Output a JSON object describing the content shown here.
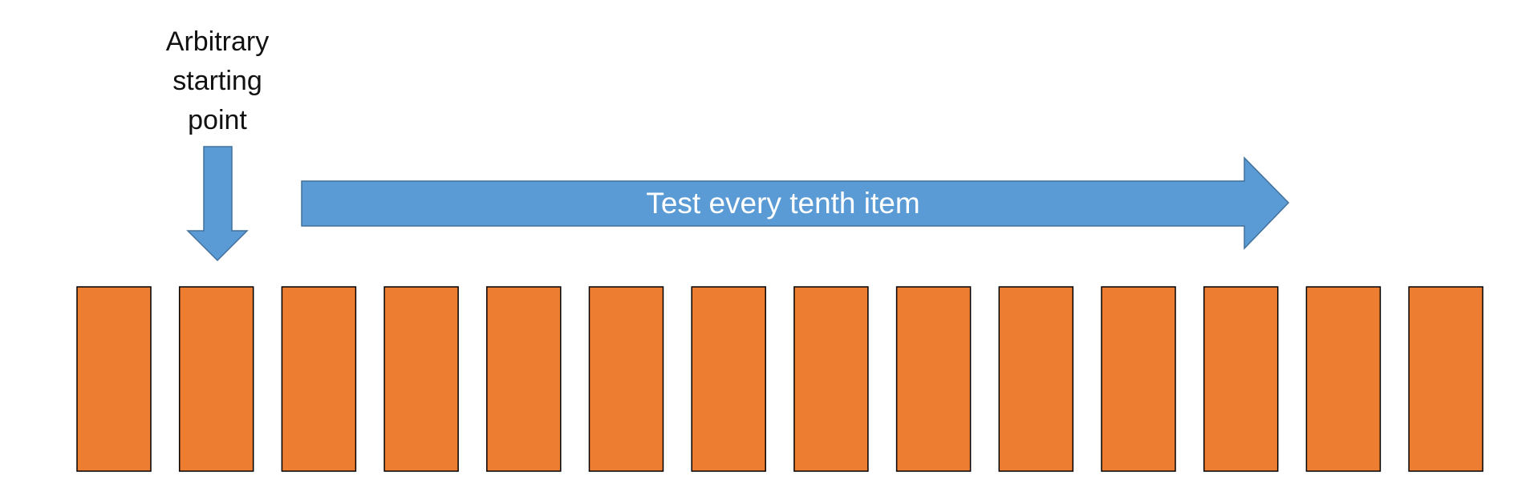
{
  "diagram": {
    "start_label": "Arbitrary\nstarting\npoint",
    "arrow_label": "Test every tenth item",
    "item_count": 14,
    "colors": {
      "arrow_fill": "#5B9BD5",
      "arrow_stroke": "#41719C",
      "item_fill": "#ED7D31",
      "item_stroke": "#000000",
      "text": "#111111",
      "arrow_text": "#FFFFFF"
    }
  }
}
